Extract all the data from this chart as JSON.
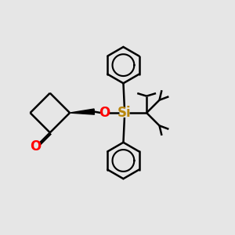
{
  "bg_color": "#e6e6e6",
  "bond_color": "#000000",
  "o_color": "#ff0000",
  "si_color": "#b8860b",
  "line_width": 1.8,
  "figsize": [
    3.0,
    3.0
  ],
  "dpi": 100,
  "xlim": [
    0,
    10
  ],
  "ylim": [
    0,
    10
  ]
}
